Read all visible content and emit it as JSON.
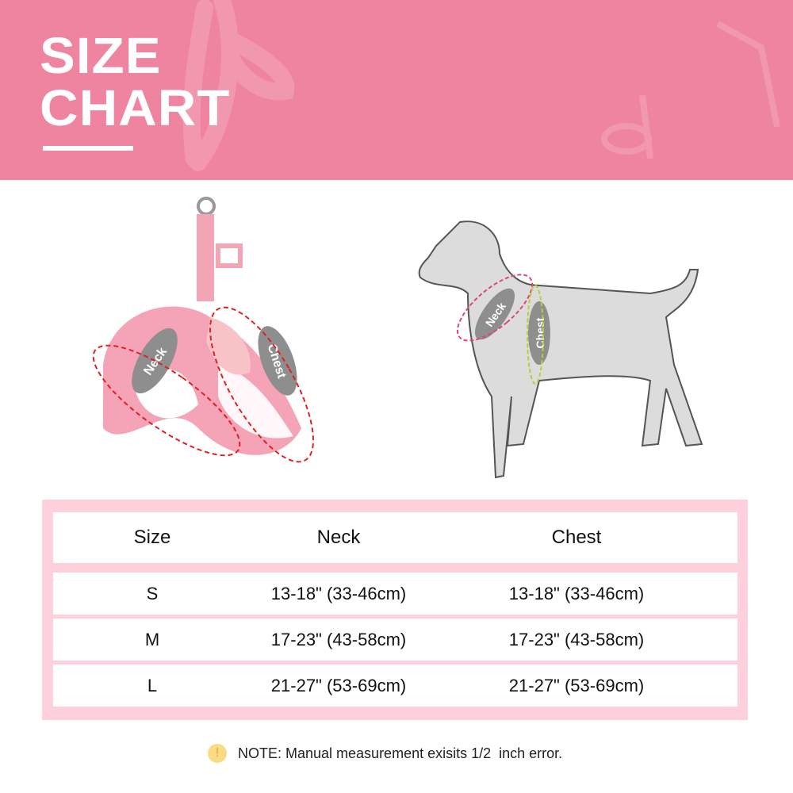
{
  "header": {
    "title_line1": "SIZE",
    "title_line2": "CHART"
  },
  "harness_labels": {
    "neck": "Neck",
    "chest": "Chest"
  },
  "dog_labels": {
    "neck": "Neck",
    "chest": "Chest"
  },
  "colors": {
    "banner": "#ee84a0",
    "table_frame": "#fdd0dc",
    "neck_marker": "#e0457b",
    "chest_marker": "#b5cf3a",
    "harness_marker": "#e02020"
  },
  "table": {
    "headers": [
      "Size",
      "Neck",
      "Chest"
    ],
    "rows": [
      [
        "S",
        "13-18\" (33-46cm)",
        "13-18\" (33-46cm)"
      ],
      [
        "M",
        "17-23\" (43-58cm)",
        "17-23\" (43-58cm)"
      ],
      [
        "L",
        "21-27\" (53-69cm)",
        "21-27\" (53-69cm)"
      ]
    ]
  },
  "note": {
    "icon": "exclamation-icon",
    "text": "NOTE: Manual measurement exisits 1/2  inch error."
  }
}
